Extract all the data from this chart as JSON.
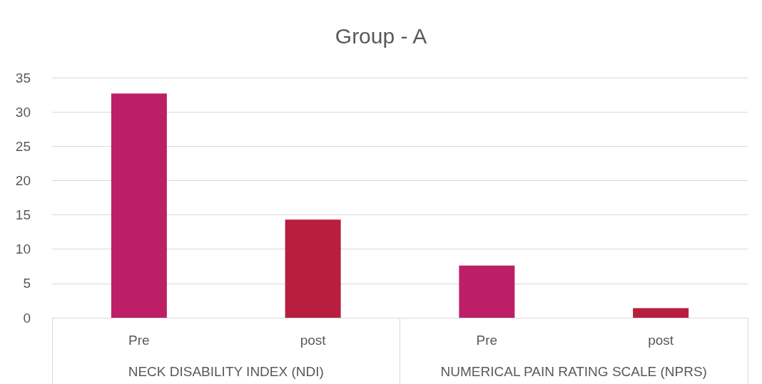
{
  "chart_data": {
    "type": "bar",
    "title": "Group - A",
    "categories": [
      "Pre",
      "post",
      "Pre",
      "post"
    ],
    "values": [
      32.7,
      14.3,
      7.6,
      1.4
    ],
    "colors": [
      "#bc1f66",
      "#b81e3f",
      "#bc1f66",
      "#b81e3f"
    ],
    "annotations": [
      "NECK DISABILITY INDEX (NDI)",
      "NUMERICAL PAIN RATING SCALE (NPRS)"
    ],
    "ylim": [
      0,
      35
    ],
    "yticks": [
      0,
      5,
      10,
      15,
      20,
      25,
      30,
      35
    ],
    "grid": "y"
  }
}
